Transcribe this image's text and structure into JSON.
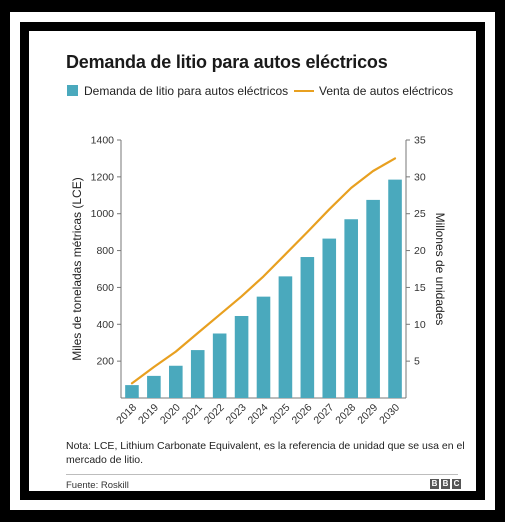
{
  "chart_data": {
    "type": "bar",
    "title": "Demanda de litio para autos eléctricos",
    "categories": [
      "2018",
      "2019",
      "2020",
      "2021",
      "2022",
      "2023",
      "2024",
      "2025",
      "2026",
      "2027",
      "2028",
      "2029",
      "2030"
    ],
    "series": [
      {
        "name": "Demanda de litio para autos eléctricos",
        "type": "bar",
        "axis": "left",
        "color": "#4aa9bd",
        "values": [
          70,
          120,
          175,
          260,
          350,
          445,
          550,
          660,
          765,
          865,
          970,
          1075,
          1185
        ]
      },
      {
        "name": "Venta de autos eléctricos",
        "type": "line",
        "axis": "right",
        "color": "#e8a020",
        "values": [
          2,
          4.2,
          6.3,
          8.8,
          11.3,
          13.8,
          16.5,
          19.5,
          22.5,
          25.6,
          28.5,
          30.8,
          32.5
        ]
      }
    ],
    "ylabel": "Miles de toneladas métricas (LCE)",
    "ylim": [
      0,
      1400
    ],
    "yticks": [
      200,
      400,
      600,
      800,
      1000,
      1200,
      1400
    ],
    "y2label": "Millones de unidades",
    "y2lim": [
      0,
      35
    ],
    "y2ticks": [
      5,
      10,
      15,
      20,
      25,
      30,
      35
    ],
    "grid": false,
    "legend_position": "top"
  },
  "note": "Nota: LCE, Lithium Carbonate Equivalent, es la referencia de unidad que se usa en el mercado de litio.",
  "source": "Fuente: Roskill",
  "logo": [
    "B",
    "B",
    "C"
  ]
}
